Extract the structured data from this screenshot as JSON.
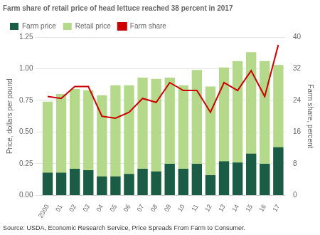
{
  "chart_data": {
    "type": "bar",
    "title": "Farm share of retail price of head lettuce reached 38 percent in 2017",
    "ylabel": "Price, dollars per pound",
    "y2label": "Farm share, percent",
    "annotation": "Source: USDA, Economic Research Service, Price Spreads From Farm to Consumer.",
    "categories": [
      "2000",
      "01",
      "02",
      "03",
      "04",
      "05",
      "06",
      "07",
      "08",
      "09",
      "10",
      "11",
      "12",
      "13",
      "14",
      "15",
      "16",
      "17"
    ],
    "series": [
      {
        "name": "Farm price",
        "type": "bar",
        "color": "#1a5c45",
        "values": [
          0.18,
          0.18,
          0.21,
          0.2,
          0.15,
          0.15,
          0.17,
          0.21,
          0.19,
          0.25,
          0.21,
          0.25,
          0.16,
          0.27,
          0.26,
          0.33,
          0.25,
          0.38
        ]
      },
      {
        "name": "Retail price",
        "type": "bar",
        "color": "#b5d98a",
        "values": [
          0.74,
          0.8,
          0.84,
          0.83,
          0.79,
          0.87,
          0.87,
          0.93,
          0.92,
          0.93,
          0.87,
          0.99,
          0.86,
          1.01,
          1.06,
          1.13,
          1.06,
          1.03
        ]
      },
      {
        "name": "Farm share",
        "type": "line",
        "axis": "y2",
        "color": "#cc0000",
        "values": [
          25.0,
          24.5,
          27.5,
          27.5,
          20.0,
          19.5,
          21.0,
          24.5,
          23.5,
          28.5,
          26.5,
          26.5,
          21.0,
          28.5,
          26.5,
          31.5,
          25.0,
          38.0
        ]
      }
    ],
    "ylim": [
      0,
      1.25
    ],
    "yticks": [
      {
        "value": 0,
        "label": "0.00"
      },
      0.25,
      {
        "value": 0.5,
        "label": "0.50"
      },
      0.75,
      {
        "value": 1,
        "label": "1.00"
      },
      1.25
    ],
    "y2lim": [
      0,
      40
    ],
    "y2ticks": [
      0,
      8,
      16,
      24,
      32,
      40
    ],
    "grid": true,
    "legend": "top"
  }
}
